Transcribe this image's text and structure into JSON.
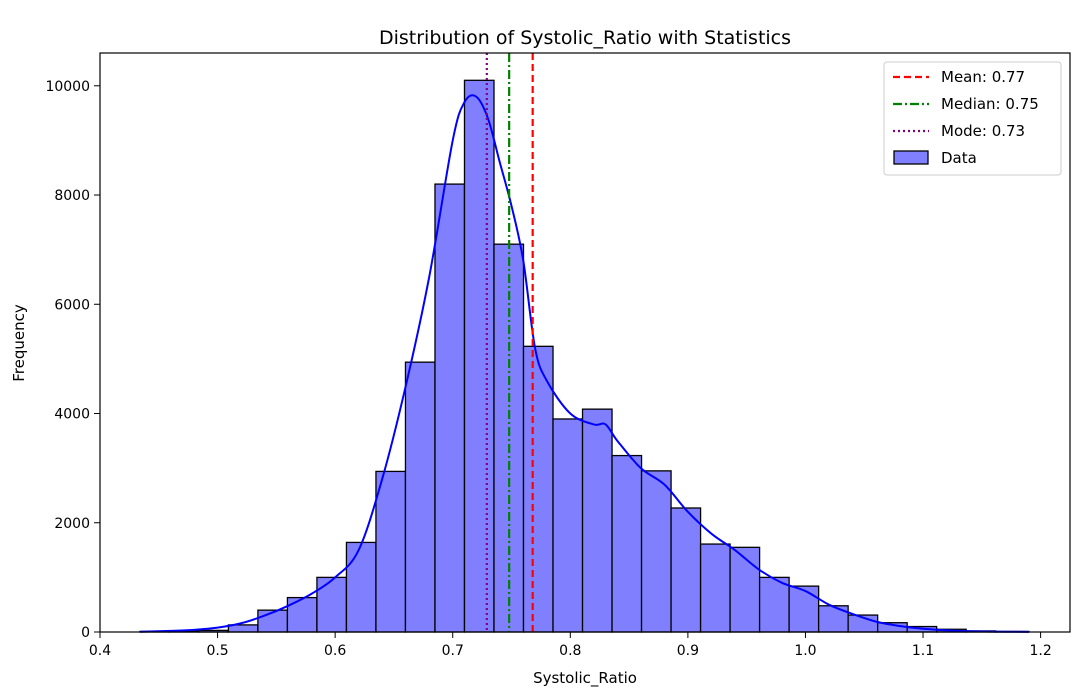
{
  "chart_data": {
    "type": "bar",
    "title": "Distribution of Systolic_Ratio with Statistics",
    "xlabel": "Systolic_Ratio",
    "ylabel": "Frequency",
    "xlim": [
      0.4,
      1.225
    ],
    "ylim": [
      0,
      10600
    ],
    "x_ticks": [
      0.4,
      0.5,
      0.6,
      0.7,
      0.8,
      0.9,
      1.0,
      1.1,
      1.2
    ],
    "x_tick_labels": [
      "0.4",
      "0.5",
      "0.6",
      "0.7",
      "0.8",
      "0.9",
      "1.0",
      "1.1",
      "1.2"
    ],
    "y_ticks": [
      0,
      2000,
      4000,
      6000,
      8000,
      10000
    ],
    "y_tick_labels": [
      "0",
      "2000",
      "4000",
      "6000",
      "8000",
      "10000"
    ],
    "grid": false,
    "legend_position": "top-right",
    "bin_edges": [
      0.434,
      0.459,
      0.484,
      0.5092,
      0.5343,
      0.5594,
      0.5845,
      0.6096,
      0.6347,
      0.6598,
      0.6849,
      0.71,
      0.7351,
      0.7602,
      0.7853,
      0.8104,
      0.8355,
      0.8606,
      0.8857,
      0.9108,
      0.9359,
      0.961,
      0.9861,
      1.0112,
      1.0363,
      1.0614,
      1.0865,
      1.1116,
      1.1367,
      1.1618,
      1.19
    ],
    "bin_counts": [
      10,
      20,
      30,
      130,
      400,
      630,
      1000,
      1640,
      2940,
      4940,
      8200,
      10100,
      7100,
      5230,
      3900,
      4080,
      3230,
      2950,
      2270,
      1610,
      1550,
      1000,
      840,
      480,
      310,
      170,
      100,
      50,
      20,
      10
    ],
    "series": [
      {
        "name": "Data",
        "color": "#8080ff",
        "edge_color": "#000000",
        "kind": "histogram"
      }
    ],
    "kde": {
      "color": "#0000ff",
      "x": [
        0.434,
        0.46,
        0.48,
        0.5,
        0.52,
        0.54,
        0.56,
        0.58,
        0.6,
        0.62,
        0.64,
        0.66,
        0.68,
        0.7,
        0.71,
        0.72,
        0.73,
        0.74,
        0.75,
        0.76,
        0.77,
        0.78,
        0.8,
        0.82,
        0.83,
        0.84,
        0.86,
        0.88,
        0.9,
        0.92,
        0.94,
        0.96,
        0.98,
        1.0,
        1.02,
        1.04,
        1.06,
        1.08,
        1.1,
        1.13,
        1.16,
        1.19
      ],
      "y": [
        5,
        20,
        40,
        80,
        160,
        300,
        480,
        700,
        1000,
        1500,
        2800,
        4500,
        6500,
        9000,
        9700,
        9800,
        9400,
        8600,
        7800,
        6800,
        5200,
        4600,
        4000,
        3800,
        3800,
        3500,
        3000,
        2700,
        2200,
        1800,
        1500,
        1150,
        900,
        750,
        500,
        330,
        190,
        110,
        60,
        20,
        8,
        2
      ]
    },
    "stat_lines": [
      {
        "name": "Mean: 0.77",
        "value": 0.768,
        "color": "#ff0000",
        "dash": "dashed"
      },
      {
        "name": "Median: 0.75",
        "value": 0.748,
        "color": "#008000",
        "dash": "dashdot"
      },
      {
        "name": "Mode: 0.73",
        "value": 0.729,
        "color": "#800080",
        "dash": "dotted"
      }
    ]
  }
}
